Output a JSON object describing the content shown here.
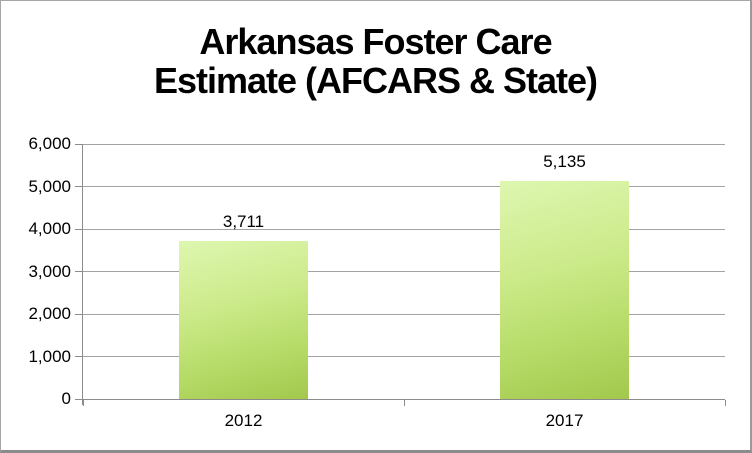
{
  "chart_data": {
    "type": "bar",
    "title_line1": "Arkansas Foster Care",
    "title_line2": "Estimate (AFCARS & State)",
    "title_full": "Arkansas Foster Care Estimate (AFCARS & State)",
    "categories": [
      "2012",
      "2017"
    ],
    "values": [
      3711,
      5135
    ],
    "value_labels": [
      "3,711",
      "5,135"
    ],
    "xlabel": "",
    "ylabel": "",
    "ylim": [
      0,
      6000
    ],
    "y_tick_values": [
      0,
      1000,
      2000,
      3000,
      4000,
      5000,
      6000
    ],
    "y_tick_labels": [
      "0",
      "1,000",
      "2,000",
      "3,000",
      "4,000",
      "5,000",
      "6,000"
    ],
    "grid": true,
    "legend": "none",
    "colors": {
      "bar_gradient_top": "#ddf7b0",
      "bar_gradient_bottom": "#a3c84d",
      "gridline": "#a3a3a3",
      "axis": "#8c8c8c",
      "text": "#000000",
      "background": "#ffffff",
      "frame_border": "#a6a6a6"
    }
  }
}
